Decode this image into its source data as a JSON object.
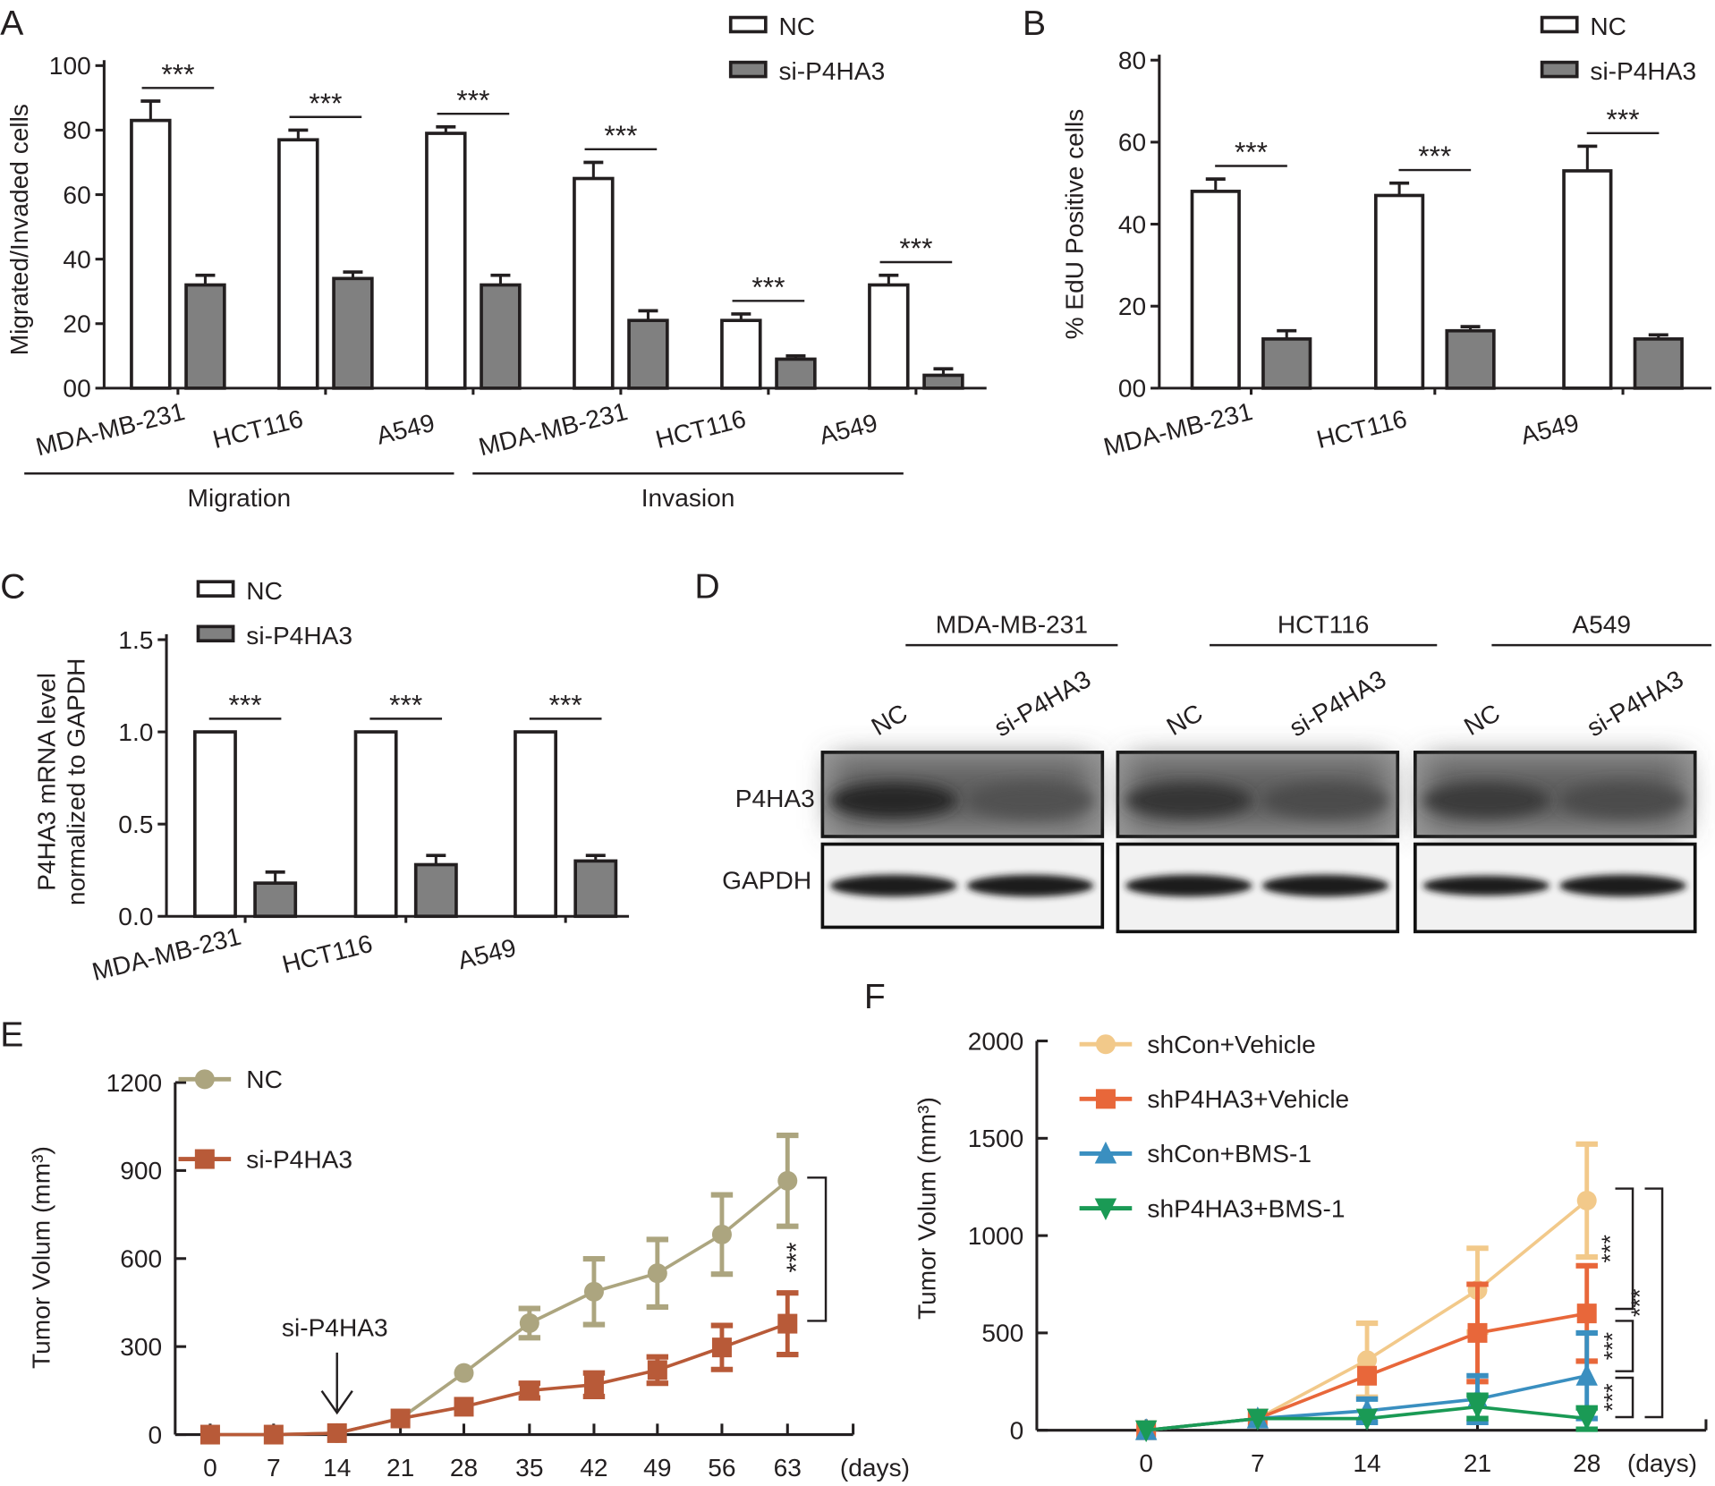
{
  "panels": {
    "A": "A",
    "B": "B",
    "C": "C",
    "D": "D",
    "E": "E",
    "F": "F"
  },
  "colors": {
    "nc_bar": "#ffffff",
    "si_bar": "#808080",
    "E_nc": "#aca57f",
    "E_si": "#b85a38",
    "F_shcon_vehicle": "#f2c98a",
    "F_shp4ha3_vehicle": "#e8673a",
    "F_shcon_bms": "#3a8fc0",
    "F_shp4ha3_bms": "#1a9a55"
  },
  "chart_data": [
    {
      "panel": "A",
      "type": "bar",
      "ylabel": "Migrated/Invaded cells",
      "ylim": [
        0,
        100
      ],
      "yticks": [
        "00",
        "20",
        "40",
        "60",
        "80",
        "100"
      ],
      "categories": [
        "MDA-MB-231",
        "HCT116",
        "A549",
        "MDA-MB-231",
        "HCT116",
        "A549"
      ],
      "groups": [
        {
          "label": "Migration",
          "categories": [
            0,
            1,
            2
          ]
        },
        {
          "label": "Invasion",
          "categories": [
            3,
            4,
            5
          ]
        }
      ],
      "legend": [
        "NC",
        "si-P4HA3"
      ],
      "legend_placement": "top-right",
      "series": [
        {
          "name": "NC",
          "values": [
            83,
            77,
            79,
            65,
            21,
            32
          ],
          "errors": [
            6,
            3,
            2,
            5,
            2,
            3
          ]
        },
        {
          "name": "si-P4HA3",
          "values": [
            32,
            34,
            32,
            21,
            9,
            4
          ],
          "errors": [
            3,
            2,
            3,
            3,
            1,
            2
          ]
        }
      ],
      "significance": [
        "***",
        "***",
        "***",
        "***",
        "***",
        "***"
      ]
    },
    {
      "panel": "B",
      "type": "bar",
      "ylabel": "% EdU Positive cells",
      "ylim": [
        0,
        80
      ],
      "yticks": [
        "00",
        "20",
        "40",
        "60",
        "80"
      ],
      "categories": [
        "MDA-MB-231",
        "HCT116",
        "A549"
      ],
      "legend": [
        "NC",
        "si-P4HA3"
      ],
      "legend_placement": "top-right",
      "series": [
        {
          "name": "NC",
          "values": [
            48,
            47,
            53
          ],
          "errors": [
            3,
            3,
            6
          ]
        },
        {
          "name": "si-P4HA3",
          "values": [
            12,
            14,
            12
          ],
          "errors": [
            2,
            1,
            1
          ]
        }
      ],
      "significance": [
        "***",
        "***",
        "***"
      ]
    },
    {
      "panel": "C",
      "type": "bar",
      "ylabel": [
        "P4HA3 mRNA level",
        "normalized to GAPDH"
      ],
      "ylim": [
        0,
        1.5
      ],
      "yticks": [
        "0.0",
        "0.5",
        "1.0",
        "1.5"
      ],
      "categories": [
        "MDA-MB-231",
        "HCT116",
        "A549"
      ],
      "legend": [
        "NC",
        "si-P4HA3"
      ],
      "legend_placement": "top-left",
      "series": [
        {
          "name": "NC",
          "values": [
            1.0,
            1.0,
            1.0
          ],
          "errors": [
            0,
            0,
            0
          ]
        },
        {
          "name": "si-P4HA3",
          "values": [
            0.18,
            0.28,
            0.3
          ],
          "errors": [
            0.06,
            0.05,
            0.03
          ]
        }
      ],
      "significance": [
        "***",
        "***",
        "***"
      ]
    },
    {
      "panel": "E",
      "type": "line",
      "ylabel": "Tumor Volum (mm³)",
      "xunit": "(days)",
      "ylim": [
        0,
        1200
      ],
      "yticks": [
        "0",
        "300",
        "600",
        "900",
        "1200"
      ],
      "x": [
        "0",
        "7",
        "14",
        "21",
        "28",
        "35",
        "42",
        "49",
        "56",
        "63"
      ],
      "legend_placement": "top-left",
      "annotation": "si-P4HA3",
      "annotation_x": "14",
      "series": [
        {
          "name": "NC",
          "values": [
            0,
            0,
            5,
            55,
            210,
            380,
            487,
            550,
            682,
            865
          ],
          "errors": [
            0,
            0,
            0,
            0,
            0,
            50,
            112,
            115,
            135,
            155
          ]
        },
        {
          "name": "si-P4HA3",
          "values": [
            0,
            0,
            5,
            55,
            95,
            150,
            170,
            220,
            297,
            378
          ],
          "errors": [
            0,
            0,
            0,
            0,
            0,
            25,
            40,
            45,
            75,
            105
          ]
        }
      ],
      "significance": [
        "***"
      ]
    },
    {
      "panel": "F",
      "type": "line",
      "ylabel": "Tumor Volum (mm³)",
      "xunit": "(days)",
      "ylim": [
        0,
        2000
      ],
      "yticks": [
        "0",
        "500",
        "1000",
        "1500",
        "2000"
      ],
      "x": [
        "0",
        "7",
        "14",
        "21",
        "28"
      ],
      "legend_placement": "top-left",
      "series": [
        {
          "name": "shCon+Vehicle",
          "marker": "circle",
          "values": [
            0,
            60,
            360,
            720,
            1180
          ],
          "errors": [
            0,
            0,
            190,
            215,
            290
          ]
        },
        {
          "name": "shP4HA3+Vehicle",
          "marker": "square",
          "values": [
            0,
            60,
            280,
            500,
            600
          ],
          "errors": [
            0,
            0,
            0,
            250,
            245
          ]
        },
        {
          "name": "shCon+BMS-1",
          "marker": "triangle-up",
          "values": [
            0,
            60,
            100,
            160,
            280
          ],
          "errors": [
            0,
            0,
            60,
            120,
            220
          ]
        },
        {
          "name": "shP4HA3+BMS-1",
          "marker": "triangle-down",
          "values": [
            0,
            60,
            60,
            120,
            60
          ],
          "errors": [
            0,
            0,
            0,
            60,
            55
          ]
        }
      ],
      "significance": [
        "***",
        "***",
        "***",
        "***"
      ]
    }
  ],
  "blot": {
    "panel": "D",
    "cell_lines": [
      "MDA-MB-231",
      "HCT116",
      "A549"
    ],
    "lanes": [
      "NC",
      "si-P4HA3"
    ],
    "proteins": [
      "P4HA3",
      "GAPDH"
    ],
    "p4ha3_intensity": [
      [
        1.0,
        0.55
      ],
      [
        0.85,
        0.6
      ],
      [
        0.8,
        0.6
      ]
    ],
    "gapdh_intensity": [
      [
        1.0,
        1.0
      ],
      [
        1.0,
        1.0
      ],
      [
        0.9,
        1.0
      ]
    ]
  }
}
